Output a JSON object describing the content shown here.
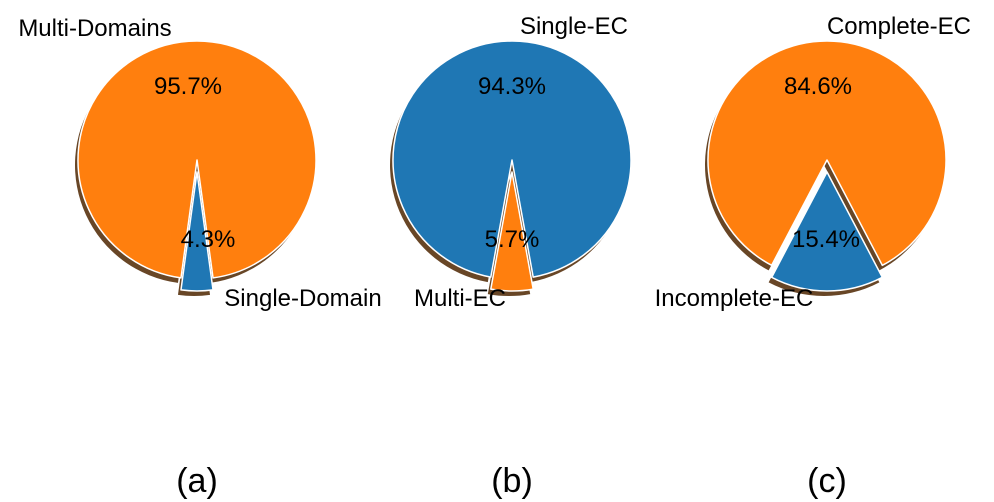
{
  "chart_data": [
    {
      "type": "pie",
      "caption": "(a)",
      "slices": [
        {
          "label": "Multi-Domains",
          "value": 95.7,
          "pct_label": "95.7%",
          "color": "#ff7f0e",
          "explode": false
        },
        {
          "label": "Single-Domain",
          "value": 4.3,
          "pct_label": "4.3%",
          "color": "#1f77b4",
          "explode": true
        }
      ],
      "shadow": true
    },
    {
      "type": "pie",
      "caption": "(b)",
      "slices": [
        {
          "label": "Single-EC",
          "value": 94.3,
          "pct_label": "94.3%",
          "color": "#1f77b4",
          "explode": false
        },
        {
          "label": "Multi-EC",
          "value": 5.7,
          "pct_label": "5.7%",
          "color": "#ff7f0e",
          "explode": true
        }
      ],
      "shadow": true
    },
    {
      "type": "pie",
      "caption": "(c)",
      "slices": [
        {
          "label": "Complete-EC",
          "value": 84.6,
          "pct_label": "84.6%",
          "color": "#ff7f0e",
          "explode": false
        },
        {
          "label": "Incomplete-EC",
          "value": 15.4,
          "pct_label": "15.4%",
          "color": "#1f77b4",
          "explode": true
        }
      ],
      "shadow": true
    }
  ]
}
